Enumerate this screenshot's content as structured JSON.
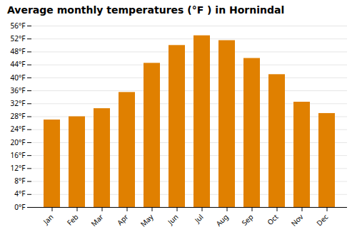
{
  "chart_data": {
    "type": "bar",
    "title": "Average monthly temperatures (°F ) in Hornindal",
    "categories": [
      "Jan",
      "Feb",
      "Mar",
      "Apr",
      "May",
      "Jun",
      "Jul",
      "Aug",
      "Sep",
      "Oct",
      "Nov",
      "Dec"
    ],
    "values": [
      27,
      28,
      30.5,
      35.5,
      44.5,
      50,
      53,
      51.5,
      46,
      41,
      32.5,
      29
    ],
    "color": "#E08000",
    "ylim": [
      0,
      56
    ],
    "yticks": [
      {
        "value": 0,
        "label": "0°F"
      },
      {
        "value": 4,
        "label": "4°F"
      },
      {
        "value": 8,
        "label": "8°F"
      },
      {
        "value": 12,
        "label": "12°F"
      },
      {
        "value": 16,
        "label": "16°F"
      },
      {
        "value": 20,
        "label": "20°F"
      },
      {
        "value": 24,
        "label": "24°F"
      },
      {
        "value": 28,
        "label": "28°F"
      },
      {
        "value": 32,
        "label": "32°F"
      },
      {
        "value": 36,
        "label": "36°F"
      },
      {
        "value": 40,
        "label": "40°F"
      },
      {
        "value": 44,
        "label": "44°F"
      },
      {
        "value": 48,
        "label": "48°F"
      },
      {
        "value": 52,
        "label": "52°F"
      },
      {
        "value": 56,
        "label": "56°F"
      }
    ],
    "grid": true
  }
}
